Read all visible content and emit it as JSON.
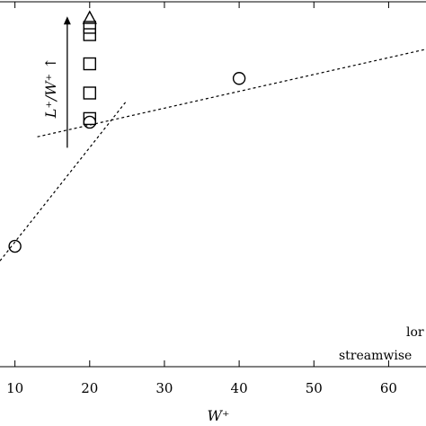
{
  "chart_data": {
    "type": "scatter",
    "xlabel": "W⁺",
    "xlim": [
      8,
      65
    ],
    "ylim": [
      0,
      1
    ],
    "xticks": [
      "10",
      "20",
      "30",
      "40",
      "50",
      "60"
    ],
    "series": [
      {
        "marker": "circle",
        "points": [
          {
            "x": 10,
            "y": 0.33
          },
          {
            "x": 20,
            "y": 0.67
          },
          {
            "x": 40,
            "y": 0.79
          }
        ]
      },
      {
        "marker": "square",
        "points": [
          {
            "x": 20,
            "y": 0.68
          },
          {
            "x": 20,
            "y": 0.75
          },
          {
            "x": 20,
            "y": 0.83
          },
          {
            "x": 20,
            "y": 0.91
          },
          {
            "x": 20,
            "y": 0.93
          }
        ]
      },
      {
        "marker": "triangle",
        "points": [
          {
            "x": 20,
            "y": 0.956
          }
        ]
      }
    ],
    "lines": [
      {
        "style": "dashed",
        "from": {
          "x": 8,
          "y": 0.29
        },
        "to": {
          "x": 25,
          "y": 0.73
        }
      },
      {
        "style": "dashed",
        "from": {
          "x": 13,
          "y": 0.63
        },
        "to": {
          "x": 65,
          "y": 0.87
        }
      }
    ],
    "arrow": {
      "x": 17,
      "from_y": 0.6,
      "to_y": 0.96,
      "label": "L⁺/W⁺ ↑"
    },
    "annotations": [
      "lor",
      "streamwise"
    ]
  }
}
